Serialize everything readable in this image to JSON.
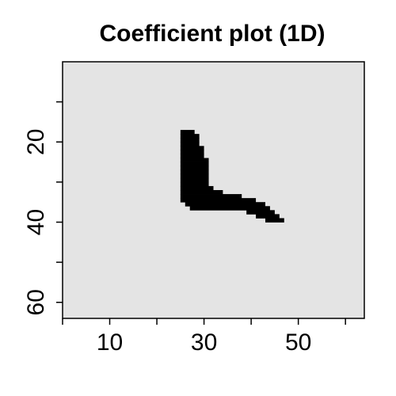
{
  "chart_data": {
    "type": "heatmap",
    "title": "Coefficient plot (1D)",
    "xlabel": "",
    "ylabel": "",
    "xlim": [
      0,
      64
    ],
    "ylim": [
      64,
      0
    ],
    "x_ticks": [
      0,
      10,
      20,
      30,
      40,
      50,
      60
    ],
    "x_tick_labels": [
      "10",
      "30",
      "50"
    ],
    "x_labeled_ticks": [
      10,
      30,
      50
    ],
    "y_ticks": [
      10,
      20,
      30,
      40,
      50,
      60
    ],
    "y_tick_labels": [
      "20",
      "40",
      "60"
    ],
    "y_labeled_ticks": [
      20,
      40,
      60
    ],
    "grid": false,
    "colors": {
      "background": "#e4e4e4",
      "feature": "#000000",
      "frame": "#000000"
    },
    "background_value": 0,
    "feature_value": 1,
    "feature_rows": [
      {
        "y": 17,
        "x_start": 25,
        "x_end": 27
      },
      {
        "y": 18,
        "x_start": 25,
        "x_end": 28
      },
      {
        "y": 19,
        "x_start": 25,
        "x_end": 28
      },
      {
        "y": 20,
        "x_start": 25,
        "x_end": 28
      },
      {
        "y": 21,
        "x_start": 25,
        "x_end": 29
      },
      {
        "y": 22,
        "x_start": 25,
        "x_end": 29
      },
      {
        "y": 23,
        "x_start": 25,
        "x_end": 29
      },
      {
        "y": 24,
        "x_start": 25,
        "x_end": 30
      },
      {
        "y": 25,
        "x_start": 25,
        "x_end": 30
      },
      {
        "y": 26,
        "x_start": 25,
        "x_end": 30
      },
      {
        "y": 27,
        "x_start": 25,
        "x_end": 30
      },
      {
        "y": 28,
        "x_start": 25,
        "x_end": 30
      },
      {
        "y": 29,
        "x_start": 25,
        "x_end": 30
      },
      {
        "y": 30,
        "x_start": 25,
        "x_end": 30
      },
      {
        "y": 31,
        "x_start": 25,
        "x_end": 31
      },
      {
        "y": 32,
        "x_start": 25,
        "x_end": 33
      },
      {
        "y": 33,
        "x_start": 25,
        "x_end": 37
      },
      {
        "y": 34,
        "x_start": 25,
        "x_end": 40
      },
      {
        "y": 35,
        "x_start": 26,
        "x_end": 42
      },
      {
        "y": 36,
        "x_start": 27,
        "x_end": 43
      },
      {
        "y": 37,
        "x_start": 39,
        "x_end": 44
      },
      {
        "y": 38,
        "x_start": 41,
        "x_end": 45
      },
      {
        "y": 39,
        "x_start": 43,
        "x_end": 46
      }
    ]
  }
}
